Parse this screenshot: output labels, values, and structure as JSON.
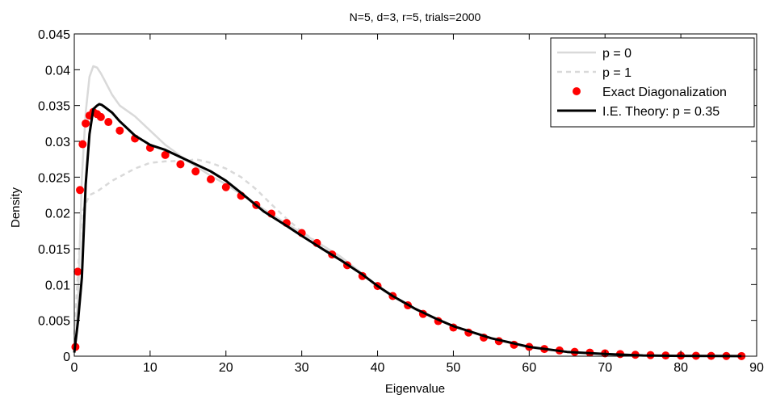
{
  "chart_data": {
    "type": "line",
    "title": "N=5, d=3, r=5, trials=2000",
    "xlabel": "Eigenvalue",
    "ylabel": "Density",
    "xlim": [
      0,
      90
    ],
    "ylim": [
      0,
      0.045
    ],
    "x_ticks": [
      "0",
      "10",
      "20",
      "30",
      "40",
      "50",
      "60",
      "70",
      "80",
      "90"
    ],
    "y_ticks": [
      "0",
      "0.005",
      "0.01",
      "0.015",
      "0.02",
      "0.025",
      "0.03",
      "0.035",
      "0.04",
      "0.045"
    ],
    "grid": false,
    "legend_position": "top-right",
    "series": [
      {
        "name": "p = 0",
        "style": "line",
        "color": "#d9d9d9",
        "x": [
          0,
          0.5,
          1,
          1.5,
          2,
          2.5,
          3,
          3.5,
          4,
          5,
          6,
          8,
          10,
          12,
          15,
          18,
          20,
          22,
          25,
          28,
          30,
          33,
          35,
          38,
          40,
          42,
          45,
          48,
          50,
          55,
          60,
          65,
          70,
          75,
          80,
          85,
          88
        ],
        "y": [
          0.001,
          0.008,
          0.025,
          0.034,
          0.039,
          0.0405,
          0.0403,
          0.0395,
          0.0385,
          0.0365,
          0.035,
          0.0335,
          0.0315,
          0.0295,
          0.0272,
          0.0252,
          0.024,
          0.0226,
          0.0205,
          0.0185,
          0.0172,
          0.0153,
          0.014,
          0.0115,
          0.0097,
          0.0083,
          0.0065,
          0.005,
          0.0042,
          0.0025,
          0.0012,
          0.0006,
          0.0003,
          0.0001,
          5e-05,
          2e-05,
          1e-05
        ]
      },
      {
        "name": "p = 1",
        "style": "dashed",
        "color": "#d9d9d9",
        "x": [
          0,
          0.5,
          1,
          2,
          3,
          5,
          8,
          10,
          12,
          15,
          16,
          18,
          20,
          22,
          24,
          26,
          28,
          30,
          33,
          35,
          38,
          40,
          42,
          45,
          48,
          50,
          55,
          60,
          65,
          70,
          75,
          80,
          85,
          88
        ],
        "y": [
          0.003,
          0.012,
          0.02,
          0.0225,
          0.023,
          0.0245,
          0.0262,
          0.027,
          0.0272,
          0.0273,
          0.0275,
          0.027,
          0.0262,
          0.025,
          0.0233,
          0.0212,
          0.0192,
          0.0174,
          0.0152,
          0.0138,
          0.0115,
          0.0098,
          0.0084,
          0.0066,
          0.0051,
          0.0042,
          0.0025,
          0.0013,
          0.0006,
          0.0003,
          0.0001,
          5e-05,
          2e-05,
          1e-05
        ]
      },
      {
        "name": "Exact Diagonalization",
        "style": "markers",
        "color": "#ff0000",
        "x": [
          0.15,
          0.45,
          0.75,
          1.1,
          1.5,
          2,
          2.5,
          3,
          3.5,
          4.5,
          6,
          8,
          10,
          12,
          14,
          16,
          18,
          20,
          22,
          24,
          26,
          28,
          30,
          32,
          34,
          36,
          38,
          40,
          42,
          44,
          46,
          48,
          50,
          52,
          54,
          56,
          58,
          60,
          62,
          64,
          66,
          68,
          70,
          72,
          74,
          76,
          78,
          80,
          82,
          84,
          86,
          88
        ],
        "y": [
          0.0013,
          0.0118,
          0.0232,
          0.0296,
          0.0325,
          0.0336,
          0.0341,
          0.0338,
          0.0334,
          0.0327,
          0.0315,
          0.0304,
          0.0291,
          0.0281,
          0.0268,
          0.0258,
          0.0247,
          0.0236,
          0.0224,
          0.0211,
          0.0199,
          0.0186,
          0.0172,
          0.0158,
          0.0142,
          0.0127,
          0.0112,
          0.0098,
          0.0084,
          0.0071,
          0.0059,
          0.0049,
          0.004,
          0.0033,
          0.0026,
          0.0021,
          0.0016,
          0.0013,
          0.001,
          0.0008,
          0.0006,
          0.0005,
          0.0004,
          0.0003,
          0.0002,
          0.00015,
          0.0001,
          8e-05,
          6e-05,
          4e-05,
          3e-05,
          2e-05
        ]
      },
      {
        "name": "I.E. Theory: p = 0.35",
        "style": "thick-line",
        "color": "#000000",
        "x": [
          0,
          0.5,
          1,
          1.5,
          2,
          2.5,
          3,
          3.3,
          3.6,
          4,
          5,
          6,
          8,
          10,
          12,
          15,
          18,
          20,
          22,
          25,
          28,
          30,
          33,
          35,
          38,
          40,
          42,
          45,
          48,
          50,
          55,
          60,
          65,
          70,
          75,
          80,
          85,
          88
        ],
        "y": [
          0.0005,
          0.005,
          0.011,
          0.024,
          0.031,
          0.0345,
          0.035,
          0.0352,
          0.0351,
          0.0348,
          0.034,
          0.0328,
          0.0308,
          0.0295,
          0.0288,
          0.0273,
          0.0258,
          0.0245,
          0.0228,
          0.0202,
          0.0182,
          0.0168,
          0.0148,
          0.0135,
          0.0114,
          0.0098,
          0.0084,
          0.0066,
          0.0051,
          0.0042,
          0.0025,
          0.0013,
          0.0006,
          0.0003,
          0.0001,
          5e-05,
          2e-05,
          1e-05
        ]
      }
    ]
  }
}
